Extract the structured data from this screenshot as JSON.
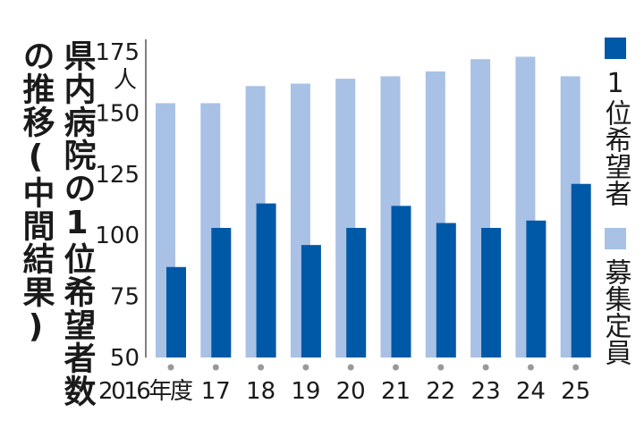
{
  "chart_data": {
    "type": "bar",
    "title": [
      "県内病院の1位希望者数",
      "の推移(中間結果)"
    ],
    "y_unit": "人",
    "categories": [
      "2016年度",
      "17",
      "18",
      "19",
      "20",
      "21",
      "22",
      "23",
      "24",
      "25"
    ],
    "series": [
      {
        "name": "募集定員",
        "color": "#a8c1e5",
        "values": [
          154,
          154,
          161,
          162,
          164,
          165,
          167,
          172,
          173,
          165
        ]
      },
      {
        "name": "1位希望者",
        "color": "#0059a6",
        "values": [
          87,
          103,
          113,
          96,
          103,
          112,
          105,
          103,
          106,
          121
        ]
      }
    ],
    "ylim": [
      50,
      175
    ],
    "yticks": [
      50,
      75,
      100,
      125,
      150,
      175
    ],
    "grid": false
  }
}
